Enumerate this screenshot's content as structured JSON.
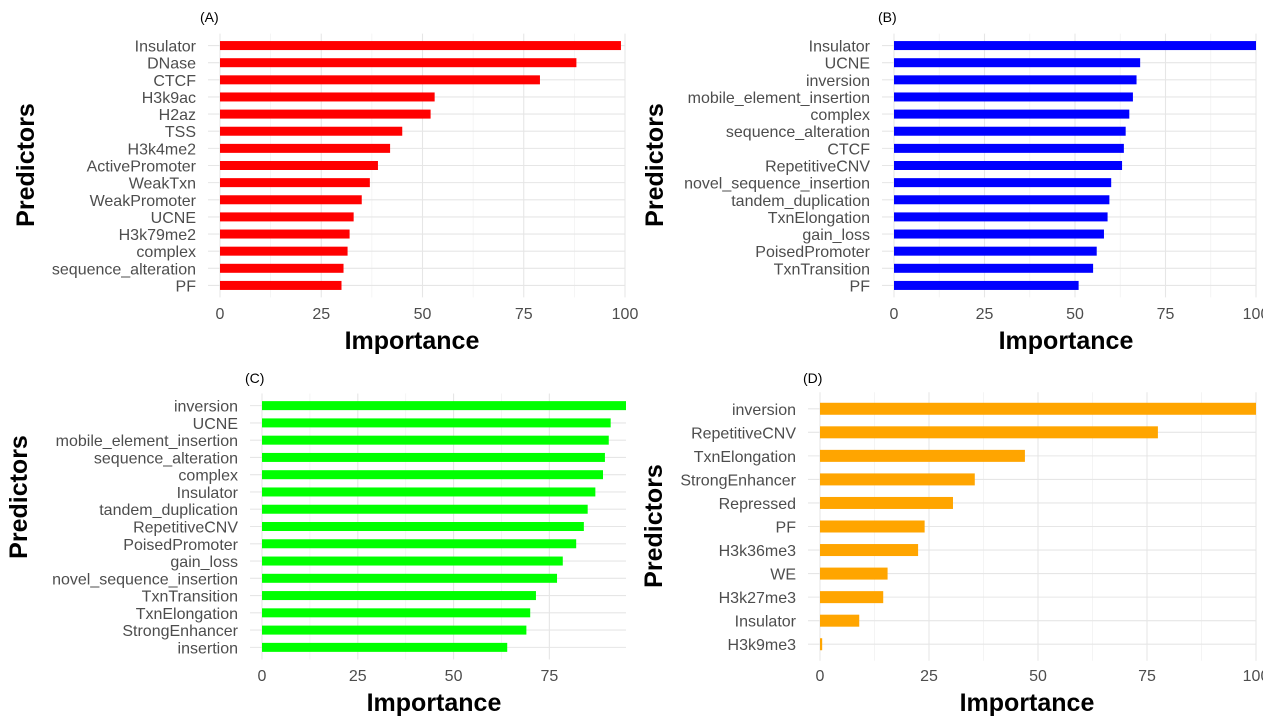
{
  "chart_data": [
    {
      "type": "bar",
      "orientation": "horizontal",
      "title": "(A)",
      "xlabel": "Importance",
      "ylabel": "Predictors",
      "xlim": [
        0,
        100
      ],
      "xticks": [
        0,
        25,
        50,
        75,
        100
      ],
      "color": "#ff0000",
      "grid": true,
      "categories": [
        "Insulator",
        "DNase",
        "CTCF",
        "H3k9ac",
        "H2az",
        "TSS",
        "H3k4me2",
        "ActivePromoter",
        "WeakTxn",
        "WeakPromoter",
        "UCNE",
        "H3k79me2",
        "complex",
        "sequence_alteration",
        "PF"
      ],
      "values": [
        99,
        88,
        79,
        53,
        52,
        45,
        42,
        39,
        37,
        35,
        33,
        32,
        31.5,
        30.5,
        30
      ]
    },
    {
      "type": "bar",
      "orientation": "horizontal",
      "title": "(B)",
      "xlabel": "Importance",
      "ylabel": "Predictors",
      "xlim": [
        0,
        100
      ],
      "xticks": [
        0,
        25,
        50,
        75,
        100
      ],
      "color": "#0000ff",
      "grid": true,
      "categories": [
        "Insulator",
        "UCNE",
        "inversion",
        "mobile_element_insertion",
        "complex",
        "sequence_alteration",
        "CTCF",
        "RepetitiveCNV",
        "novel_sequence_insertion",
        "tandem_duplication",
        "TxnElongation",
        "gain_loss",
        "PoisedPromoter",
        "TxnTransition",
        "PF"
      ],
      "values": [
        100,
        68,
        67,
        66,
        65,
        64,
        63.5,
        63,
        60,
        59.5,
        59,
        58,
        56,
        55,
        51
      ]
    },
    {
      "type": "bar",
      "orientation": "horizontal",
      "title": "(C)",
      "xlabel": "Importance",
      "ylabel": "Predictors",
      "xlim": [
        0,
        95
      ],
      "xticks": [
        0,
        25,
        50,
        75
      ],
      "color": "#00ff00",
      "grid": true,
      "categories": [
        "inversion",
        "UCNE",
        "mobile_element_insertion",
        "sequence_alteration",
        "complex",
        "Insulator",
        "tandem_duplication",
        "RepetitiveCNV",
        "PoisedPromoter",
        "gain_loss",
        "novel_sequence_insertion",
        "TxnTransition",
        "TxnElongation",
        "StrongEnhancer",
        "insertion"
      ],
      "values": [
        95,
        91,
        90.5,
        89.5,
        89,
        87,
        85,
        84,
        82,
        78.5,
        77,
        71.5,
        70,
        69,
        64
      ]
    },
    {
      "type": "bar",
      "orientation": "horizontal",
      "title": "(D)",
      "xlabel": "Importance",
      "ylabel": "Predictors",
      "xlim": [
        0,
        100
      ],
      "xticks": [
        0,
        25,
        50,
        75,
        100
      ],
      "color": "#ffa500",
      "grid": true,
      "categories": [
        "inversion",
        "RepetitiveCNV",
        "TxnElongation",
        "StrongEnhancer",
        "Repressed",
        "PF",
        "H3k36me3",
        "WE",
        "H3k27me3",
        "Insulator",
        "H3k9me3"
      ],
      "values": [
        100,
        77.5,
        47,
        35.5,
        30.5,
        24,
        22.5,
        15.5,
        14.5,
        9,
        0.5
      ]
    }
  ]
}
